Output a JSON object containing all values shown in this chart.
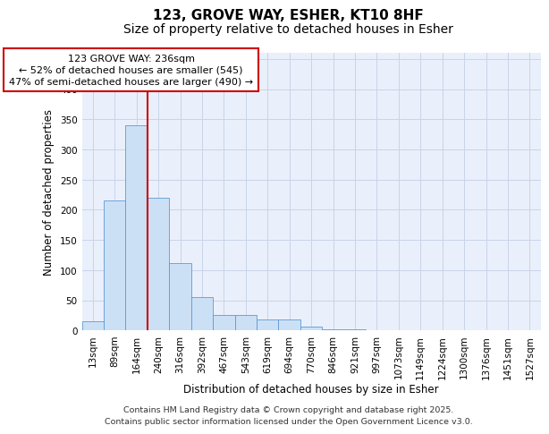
{
  "title_line1": "123, GROVE WAY, ESHER, KT10 8HF",
  "title_line2": "Size of property relative to detached houses in Esher",
  "xlabel": "Distribution of detached houses by size in Esher",
  "ylabel": "Number of detached properties",
  "categories": [
    "13sqm",
    "89sqm",
    "164sqm",
    "240sqm",
    "316sqm",
    "392sqm",
    "467sqm",
    "543sqm",
    "619sqm",
    "694sqm",
    "770sqm",
    "846sqm",
    "921sqm",
    "997sqm",
    "1073sqm",
    "1149sqm",
    "1224sqm",
    "1300sqm",
    "1376sqm",
    "1451sqm",
    "1527sqm"
  ],
  "values": [
    15,
    215,
    340,
    220,
    112,
    55,
    25,
    25,
    18,
    18,
    6,
    2,
    2,
    1,
    0,
    0,
    0,
    0,
    0,
    0,
    1
  ],
  "bar_color": "#cce0f5",
  "bar_edge_color": "#5b9bd5",
  "grid_color": "#c8d4e8",
  "background_color": "#eaf0fb",
  "vline_color": "#cc0000",
  "annotation_text": "123 GROVE WAY: 236sqm\n← 52% of detached houses are smaller (545)\n47% of semi-detached houses are larger (490) →",
  "annotation_box_color": "#cc0000",
  "ylim": [
    0,
    460
  ],
  "yticks": [
    0,
    50,
    100,
    150,
    200,
    250,
    300,
    350,
    400,
    450
  ],
  "footer_text": "Contains HM Land Registry data © Crown copyright and database right 2025.\nContains public sector information licensed under the Open Government Licence v3.0.",
  "title_fontsize": 11,
  "subtitle_fontsize": 10,
  "axis_label_fontsize": 8.5,
  "tick_fontsize": 7.5,
  "annotation_fontsize": 8
}
